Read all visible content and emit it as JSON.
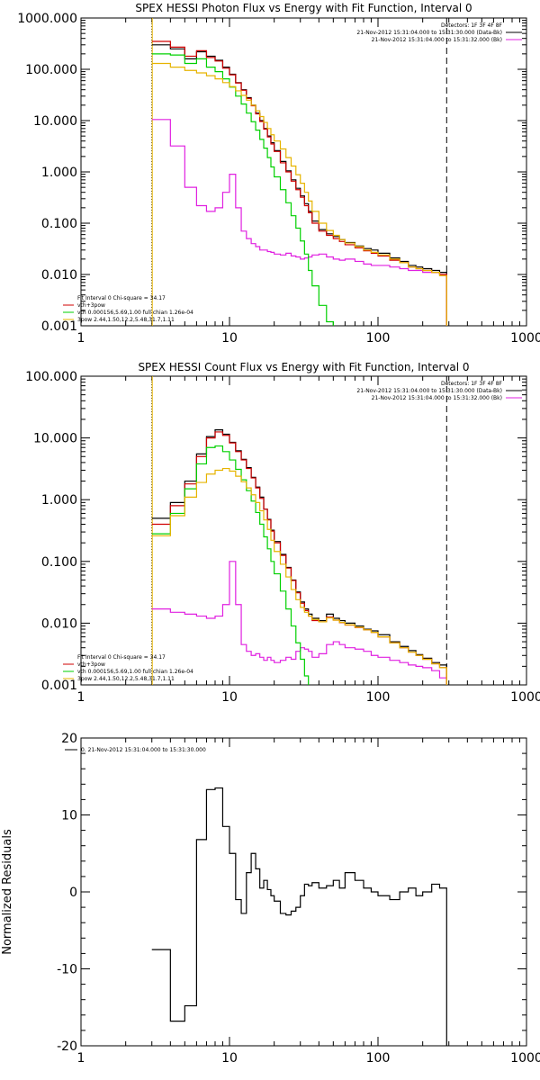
{
  "chart_data": [
    {
      "type": "line",
      "title": "SPEX HESSI Photon Flux vs Energy with Fit Function, Interval 0",
      "xscale": "log",
      "yscale": "log",
      "xlim": [
        1,
        1000
      ],
      "ylim": [
        0.001,
        1000
      ],
      "xticks": [
        {
          "v": 1,
          "label": "1"
        },
        {
          "v": 10,
          "label": "10"
        },
        {
          "v": 100,
          "label": "100"
        },
        {
          "v": 1000,
          "label": "1000"
        }
      ],
      "yticks": [
        {
          "v": 0.001,
          "label": "0.001"
        },
        {
          "v": 0.01,
          "label": "0.010"
        },
        {
          "v": 0.1,
          "label": "0.100"
        },
        {
          "v": 1,
          "label": "1.000"
        },
        {
          "v": 10,
          "label": "10.000"
        },
        {
          "v": 100,
          "label": "100.000"
        },
        {
          "v": 1000,
          "label": "1000.000"
        }
      ],
      "vlines": [
        {
          "x": 3,
          "style": "dotted",
          "color": "#000000"
        },
        {
          "x": 3.02,
          "style": "solid",
          "color": "#e6b400"
        },
        {
          "x": 290,
          "style": "dashed",
          "color": "#000000"
        }
      ],
      "legend_top": {
        "placement": "top-right",
        "lines": [
          {
            "text": "Detectors: 1F 3F 4F 8F",
            "color": null
          },
          {
            "text": "21-Nov-2012 15:31:04.000 to 15:31:30.000 (Data-Bk)",
            "color": "#000000"
          },
          {
            "text": "21-Nov-2012 15:31:04.000 to 15:31:32.000 (Bk)",
            "color": "#e020e0"
          }
        ]
      },
      "legend_bottom": {
        "placement": "bottom-left",
        "lines": [
          {
            "text": "Fit Interval 0   Chi-square = 34.17",
            "color": null
          },
          {
            "text": "vth+3pow",
            "color": "#d00000"
          },
          {
            "text": "vth 0.000156,5.69,1.00   full chian 1.26e-04",
            "color": "#00d000"
          },
          {
            "text": "3pow 2.44,1.50,12.2,5.48,31.7,1.11",
            "color": "#e6b400"
          }
        ]
      },
      "edges": [
        3,
        4,
        5,
        6,
        7,
        8,
        9,
        10,
        11,
        12,
        13,
        14,
        15,
        16,
        17,
        18,
        19,
        20,
        22,
        24,
        26,
        28,
        30,
        32,
        34,
        36,
        40,
        45,
        50,
        55,
        60,
        70,
        80,
        90,
        100,
        120,
        140,
        160,
        180,
        200,
        230,
        260,
        290
      ],
      "series": [
        {
          "name": "Data-Bk",
          "color": "#000000",
          "values": [
            300,
            250,
            160,
            220,
            180,
            150,
            110,
            80,
            55,
            40,
            28,
            20,
            14,
            10,
            7,
            5,
            3.7,
            2.6,
            1.6,
            1.05,
            0.7,
            0.48,
            0.34,
            0.24,
            0.17,
            0.11,
            0.075,
            0.062,
            0.055,
            0.048,
            0.042,
            0.036,
            0.032,
            0.03,
            0.026,
            0.021,
            0.018,
            0.015,
            0.014,
            0.013,
            0.012,
            0.011
          ]
        },
        {
          "name": "Bk",
          "color": "#e020e0",
          "values": [
            10.5,
            3.2,
            0.5,
            0.22,
            0.17,
            0.2,
            0.4,
            0.9,
            0.2,
            0.07,
            0.05,
            0.04,
            0.035,
            0.03,
            0.03,
            0.028,
            0.027,
            0.025,
            0.024,
            0.026,
            0.023,
            0.022,
            0.02,
            0.021,
            0.022,
            0.024,
            0.025,
            0.022,
            0.02,
            0.019,
            0.02,
            0.018,
            0.016,
            0.015,
            0.015,
            0.014,
            0.013,
            0.012,
            0.012,
            0.011,
            0.011,
            0.01
          ]
        },
        {
          "name": "vth+3pow",
          "color": "#d00000",
          "values": [
            350,
            270,
            180,
            230,
            170,
            145,
            105,
            78,
            54,
            39,
            27,
            19.5,
            13.5,
            9.6,
            6.8,
            4.8,
            3.5,
            2.5,
            1.5,
            1.0,
            0.66,
            0.45,
            0.32,
            0.22,
            0.16,
            0.1,
            0.07,
            0.058,
            0.05,
            0.044,
            0.038,
            0.033,
            0.029,
            0.026,
            0.023,
            0.019,
            0.017,
            0.014,
            0.013,
            0.012,
            0.011,
            0.01
          ]
        },
        {
          "name": "vth",
          "color": "#00d000",
          "values": [
            200,
            190,
            130,
            160,
            110,
            90,
            65,
            45,
            30,
            21,
            14,
            9.5,
            6.5,
            4.3,
            2.9,
            1.9,
            1.25,
            0.8,
            0.45,
            0.25,
            0.14,
            0.08,
            0.045,
            0.025,
            0.012,
            0.006,
            0.0025,
            0.0012,
            0.0006
          ]
        },
        {
          "name": "3pow",
          "color": "#e6b400",
          "values": [
            130,
            110,
            95,
            85,
            75,
            65,
            55,
            46,
            38,
            31,
            25,
            20,
            15.5,
            12,
            9.2,
            7,
            5.3,
            4,
            2.8,
            1.9,
            1.3,
            0.88,
            0.6,
            0.4,
            0.27,
            0.17,
            0.1,
            0.072,
            0.058,
            0.048,
            0.041,
            0.035,
            0.03,
            0.027,
            0.024,
            0.02,
            0.017,
            0.014,
            0.013,
            0.012,
            0.011,
            0.0095
          ]
        }
      ]
    },
    {
      "type": "line",
      "title": "SPEX HESSI Count Flux vs Energy with Fit Function, Interval 0",
      "xscale": "log",
      "yscale": "log",
      "xlim": [
        1,
        1000
      ],
      "ylim": [
        0.001,
        100
      ],
      "xticks": [
        {
          "v": 1,
          "label": "1"
        },
        {
          "v": 10,
          "label": "10"
        },
        {
          "v": 100,
          "label": "100"
        },
        {
          "v": 1000,
          "label": "1000"
        }
      ],
      "yticks": [
        {
          "v": 0.001,
          "label": "0.001"
        },
        {
          "v": 0.01,
          "label": "0.010"
        },
        {
          "v": 0.1,
          "label": "0.100"
        },
        {
          "v": 1,
          "label": "1.000"
        },
        {
          "v": 10,
          "label": "10.000"
        },
        {
          "v": 100,
          "label": "100.000"
        }
      ],
      "vlines": [
        {
          "x": 3,
          "style": "dotted",
          "color": "#000000"
        },
        {
          "x": 3.02,
          "style": "solid",
          "color": "#e6b400"
        },
        {
          "x": 290,
          "style": "dashed",
          "color": "#000000"
        }
      ],
      "legend_top": {
        "placement": "top-right",
        "lines": [
          {
            "text": "Detectors: 1F 3F 4F 8F",
            "color": null
          },
          {
            "text": "21-Nov-2012 15:31:04.000 to 15:31:30.000 (Data-Bk)",
            "color": "#000000"
          },
          {
            "text": "21-Nov-2012 15:31:04.000 to 15:31:32.000 (Bk)",
            "color": "#e020e0"
          }
        ]
      },
      "legend_bottom": {
        "placement": "bottom-left",
        "lines": [
          {
            "text": "Fit Interval 0   Chi-square = 34.17",
            "color": null
          },
          {
            "text": "vth+3pow",
            "color": "#d00000"
          },
          {
            "text": "vth 0.000156,5.69,1.00   full chian 1.26e-04",
            "color": "#00d000"
          },
          {
            "text": "3pow 2.44,1.50,12.2,5.48,31.7,1.11",
            "color": "#e6b400"
          }
        ]
      },
      "edges": [
        3,
        4,
        5,
        6,
        7,
        8,
        9,
        10,
        11,
        12,
        13,
        14,
        15,
        16,
        17,
        18,
        19,
        20,
        22,
        24,
        26,
        28,
        30,
        32,
        34,
        36,
        40,
        45,
        50,
        55,
        60,
        70,
        80,
        90,
        100,
        120,
        140,
        160,
        180,
        200,
        230,
        260,
        290
      ],
      "series": [
        {
          "name": "Data-Bk",
          "color": "#000000",
          "values": [
            0.5,
            0.9,
            2.0,
            5.5,
            10.5,
            13.5,
            11.5,
            8.5,
            6.2,
            4.5,
            3.3,
            2.3,
            1.6,
            1.1,
            0.7,
            0.48,
            0.32,
            0.21,
            0.13,
            0.08,
            0.05,
            0.032,
            0.022,
            0.017,
            0.014,
            0.012,
            0.011,
            0.014,
            0.012,
            0.011,
            0.01,
            0.009,
            0.008,
            0.0075,
            0.0065,
            0.005,
            0.0042,
            0.0036,
            0.0031,
            0.0027,
            0.0023,
            0.0021
          ]
        },
        {
          "name": "Bk",
          "color": "#e020e0",
          "values": [
            0.017,
            0.015,
            0.014,
            0.013,
            0.012,
            0.013,
            0.02,
            0.1,
            0.02,
            0.0045,
            0.0035,
            0.003,
            0.0032,
            0.0028,
            0.0025,
            0.0028,
            0.0025,
            0.0023,
            0.0025,
            0.0028,
            0.0026,
            0.0035,
            0.004,
            0.0038,
            0.0035,
            0.0028,
            0.0032,
            0.0045,
            0.005,
            0.0045,
            0.004,
            0.0038,
            0.0035,
            0.003,
            0.0028,
            0.0025,
            0.0023,
            0.0021,
            0.002,
            0.0019,
            0.0017,
            0.0013
          ]
        },
        {
          "name": "vth+3pow",
          "color": "#d00000",
          "values": [
            0.4,
            0.8,
            1.8,
            5.0,
            10.0,
            12.5,
            11.0,
            8.3,
            6.0,
            4.4,
            3.2,
            2.25,
            1.55,
            1.05,
            0.7,
            0.47,
            0.31,
            0.2,
            0.125,
            0.078,
            0.049,
            0.031,
            0.021,
            0.016,
            0.013,
            0.011,
            0.0105,
            0.0125,
            0.0112,
            0.0102,
            0.0093,
            0.0085,
            0.0078,
            0.0071,
            0.006,
            0.0048,
            0.004,
            0.0034,
            0.003,
            0.0026,
            0.0022,
            0.0019
          ]
        },
        {
          "name": "vth",
          "color": "#00d000",
          "values": [
            0.28,
            0.6,
            1.5,
            3.8,
            7.0,
            7.4,
            6.0,
            4.4,
            3.1,
            2.1,
            1.4,
            0.95,
            0.62,
            0.4,
            0.25,
            0.16,
            0.1,
            0.063,
            0.033,
            0.017,
            0.009,
            0.0048,
            0.0026,
            0.0014
          ]
        },
        {
          "name": "3pow",
          "color": "#e6b400",
          "values": [
            0.26,
            0.55,
            1.1,
            1.9,
            2.6,
            3.0,
            3.2,
            2.9,
            2.4,
            1.95,
            1.55,
            1.2,
            0.9,
            0.66,
            0.47,
            0.33,
            0.22,
            0.145,
            0.09,
            0.056,
            0.035,
            0.024,
            0.018,
            0.015,
            0.013,
            0.0115,
            0.0105,
            0.0122,
            0.0112,
            0.0103,
            0.0094,
            0.0086,
            0.0078,
            0.0071,
            0.006,
            0.0048,
            0.004,
            0.0034,
            0.003,
            0.0026,
            0.0022,
            0.0019
          ]
        }
      ]
    },
    {
      "type": "line",
      "title": "",
      "ylabel": "Normalized Residuals",
      "xscale": "log",
      "yscale": "linear",
      "xlim": [
        1,
        1000
      ],
      "ylim": [
        -20,
        20
      ],
      "xticks": [
        {
          "v": 1,
          "label": "1"
        },
        {
          "v": 10,
          "label": "10"
        },
        {
          "v": 100,
          "label": "100"
        },
        {
          "v": 1000,
          "label": "1000"
        }
      ],
      "yticks": [
        {
          "v": -20,
          "label": "-20"
        },
        {
          "v": -10,
          "label": "-10"
        },
        {
          "v": 0,
          "label": "0"
        },
        {
          "v": 10,
          "label": "10"
        },
        {
          "v": 20,
          "label": "20"
        }
      ],
      "vlines": [],
      "legend_top": {
        "placement": "top-left",
        "lines": [
          {
            "text": "0. 21-Nov-2012 15:31:04.000 to 15:31:30.000",
            "color": "#000000"
          }
        ]
      },
      "legend_bottom": null,
      "edges": [
        3,
        4,
        5,
        6,
        7,
        8,
        9,
        10,
        11,
        12,
        13,
        14,
        15,
        16,
        17,
        18,
        19,
        20,
        22,
        24,
        26,
        28,
        30,
        32,
        34,
        36,
        40,
        45,
        50,
        55,
        60,
        70,
        80,
        90,
        100,
        120,
        140,
        160,
        180,
        200,
        230,
        260,
        290
      ],
      "series": [
        {
          "name": "",
          "color": "#000000",
          "values": [
            -7.5,
            -16.8,
            -14.8,
            6.8,
            13.3,
            13.5,
            8.5,
            5.0,
            -1.0,
            -2.8,
            2.5,
            5.0,
            3.0,
            0.5,
            1.5,
            0.3,
            -0.5,
            -1.2,
            -2.8,
            -3.0,
            -2.5,
            -2.0,
            -0.5,
            1.0,
            0.8,
            1.2,
            0.5,
            0.8,
            1.5,
            0.5,
            2.5,
            1.5,
            0.5,
            0.0,
            -0.5,
            -1.0,
            0.0,
            0.5,
            -0.5,
            0.0,
            1.0,
            0.5
          ]
        }
      ]
    }
  ]
}
